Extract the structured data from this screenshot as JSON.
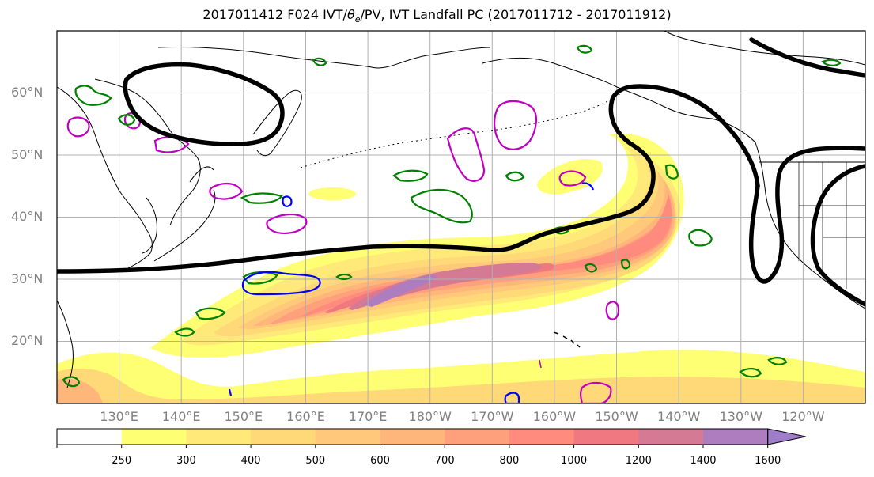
{
  "title": {
    "prefix": "2017011412 F024 IVT/",
    "symbol": "θ",
    "subscript": "e",
    "suffix": "/PV, IVT Landfall PC (2017011712 - 2017011912)"
  },
  "map": {
    "region": "North Pacific",
    "projection": "equirectangular",
    "lon_range": [
      120,
      250
    ],
    "lat_range": [
      10,
      70
    ],
    "gridlines": true,
    "lat_labels": [
      "20°N",
      "30°N",
      "40°N",
      "50°N",
      "60°N"
    ],
    "lon_labels": [
      "130°E",
      "140°E",
      "150°E",
      "160°E",
      "170°E",
      "180°W",
      "170°W",
      "160°W",
      "150°W",
      "140°W",
      "130°W",
      "120°W"
    ],
    "layers": {
      "ivt_fill": "IVT shading",
      "landfall_pc_contour": "IVT Landfall PC",
      "theta_e_contours": "θe",
      "pv_contours": "PV"
    },
    "colors": {
      "landfall_pc": "#000000",
      "contour_green": "#008000",
      "contour_blue": "#0000ff",
      "contour_magenta": "#c000c0",
      "coastline": "#000000",
      "grid": "#b0b0b0"
    }
  },
  "colorbar": {
    "labels": [
      "250",
      "300",
      "400",
      "500",
      "600",
      "700",
      "800",
      "1000",
      "1200",
      "1400",
      "1600"
    ],
    "colors": [
      "#ffffff",
      "#ffff73",
      "#ffe979",
      "#ffd878",
      "#ffc87a",
      "#ffb67b",
      "#ffa07c",
      "#ff8a7e",
      "#f07880",
      "#d47a95",
      "#ad7dc0",
      "#a07dc8"
    ],
    "extend": "max"
  }
}
